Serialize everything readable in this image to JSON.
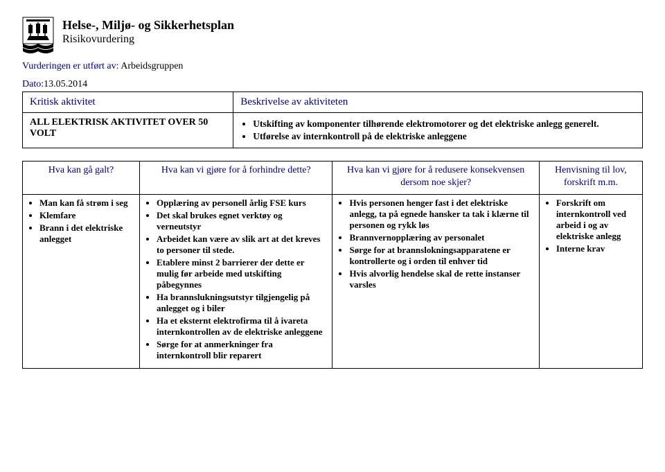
{
  "header": {
    "title_main": "Helse-, Miljø- og Sikkerhetsplan",
    "title_sub": "Risikovurdering",
    "meta_prefix": "Vurderingen er utført av: ",
    "meta_value": "Arbeidsgruppen",
    "date_label": "Dato:",
    "date_value": "13.05.2014"
  },
  "top_table": {
    "col1_header": "Kritisk aktivitet",
    "col2_header": "Beskrivelse av aktiviteten",
    "activity_name": "ALL ELEKTRISK AKTIVITET OVER 50 VOLT",
    "description_items": [
      "Utskifting av komponenter tilhørende elektromotorer og det elektriske anlegg generelt.",
      "Utførelse av internkontroll på de elektriske anleggene"
    ]
  },
  "matrix": {
    "headers": {
      "c1": "Hva kan gå galt?",
      "c2": "Hva kan vi gjøre for å forhindre dette?",
      "c3": "Hva kan vi gjøre for å redusere konsekvensen dersom noe skjer?",
      "c4": "Henvisning til lov, forskrift m.m."
    },
    "row": {
      "c1": [
        "Man kan få strøm i seg",
        "Klemfare",
        "Brann i det elektriske anlegget"
      ],
      "c2": [
        "Opplæring av personell årlig FSE kurs",
        "Det skal brukes egnet verktøy og verneutstyr",
        "Arbeidet kan være av slik art at det kreves to personer til stede.",
        "Etablere minst 2 barrierer der dette er mulig før arbeide med utskifting påbegynnes",
        "Ha brannslukningsutstyr tilgjengelig på anlegget og i biler",
        "Ha et eksternt elektrofirma til å ivareta internkontrollen av de elektriske anleggene",
        "Sørge for at anmerkninger fra internkontroll blir reparert"
      ],
      "c3": [
        "Hvis personen henger fast i det elektriske anlegg, ta på egnede hansker ta tak i klærne til personen og rykk løs",
        "Brannvernopplæring av personalet",
        "Sørge for at brannslokningsapparatene er kontrollerte og i orden til enhver tid",
        "Hvis alvorlig hendelse skal de rette instanser varsles"
      ],
      "c4": [
        "Forskrift om internkontroll ved arbeid i og av elektriske anlegg",
        "Interne krav"
      ]
    }
  },
  "style": {
    "accent_color": "#000088",
    "text_color": "#000000",
    "background_color": "#ffffff",
    "border_color": "#000000",
    "serif_font": "Times New Roman",
    "casual_font": "Comic Sans MS",
    "title_fontsize_pt": 18,
    "header_fontsize_pt": 15,
    "body_fontsize_pt": 13
  }
}
